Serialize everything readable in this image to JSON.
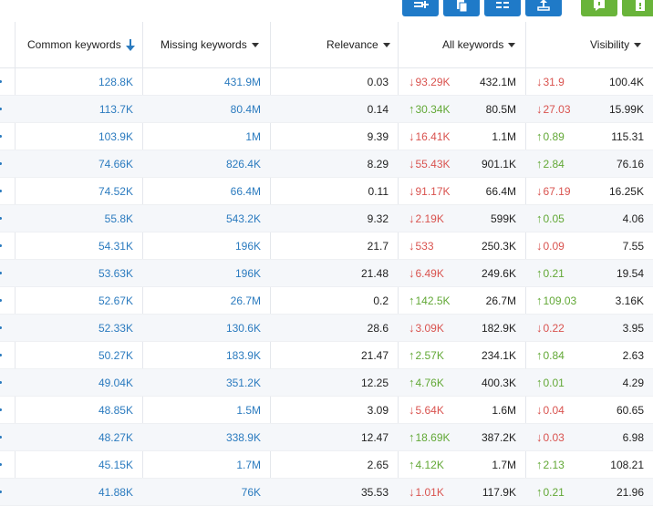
{
  "colors": {
    "accent": "#1f7ac8",
    "success": "#69b43a",
    "link": "#2b7bbf",
    "up": "#62a836",
    "down": "#d9534f"
  },
  "toolbar": {
    "buttons": [
      {
        "icon": "add-column-icon",
        "color": "blue"
      },
      {
        "icon": "copy-icon",
        "color": "blue"
      },
      {
        "icon": "columns-icon",
        "color": "blue"
      },
      {
        "icon": "export-icon",
        "color": "blue"
      },
      {
        "icon": "comment-icon",
        "color": "green"
      },
      {
        "icon": "help-icon",
        "color": "green"
      }
    ]
  },
  "headers": {
    "common": "Common keywords",
    "missing": "Missing keywords",
    "relevance": "Relevance",
    "all": "All keywords",
    "visibility": "Visibility"
  },
  "rows": [
    {
      "common": "128.8K",
      "missing": "431.9M",
      "relevance": "0.03",
      "all_dir": "down",
      "all_change": "93.29K",
      "all": "432.1M",
      "vis_dir": "down",
      "vis_change": "31.9",
      "vis": "100.4K"
    },
    {
      "common": "113.7K",
      "missing": "80.4M",
      "relevance": "0.14",
      "all_dir": "up",
      "all_change": "30.34K",
      "all": "80.5M",
      "vis_dir": "down",
      "vis_change": "27.03",
      "vis": "15.99K"
    },
    {
      "common": "103.9K",
      "missing": "1M",
      "relevance": "9.39",
      "all_dir": "down",
      "all_change": "16.41K",
      "all": "1.1M",
      "vis_dir": "up",
      "vis_change": "0.89",
      "vis": "115.31"
    },
    {
      "common": "74.66K",
      "missing": "826.4K",
      "relevance": "8.29",
      "all_dir": "down",
      "all_change": "55.43K",
      "all": "901.1K",
      "vis_dir": "up",
      "vis_change": "2.84",
      "vis": "76.16"
    },
    {
      "common": "74.52K",
      "missing": "66.4M",
      "relevance": "0.11",
      "all_dir": "down",
      "all_change": "91.17K",
      "all": "66.4M",
      "vis_dir": "down",
      "vis_change": "67.19",
      "vis": "16.25K"
    },
    {
      "common": "55.8K",
      "missing": "543.2K",
      "relevance": "9.32",
      "all_dir": "down",
      "all_change": "2.19K",
      "all": "599K",
      "vis_dir": "up",
      "vis_change": "0.05",
      "vis": "4.06"
    },
    {
      "common": "54.31K",
      "missing": "196K",
      "relevance": "21.7",
      "all_dir": "down",
      "all_change": "533",
      "all": "250.3K",
      "vis_dir": "down",
      "vis_change": "0.09",
      "vis": "7.55"
    },
    {
      "common": "53.63K",
      "missing": "196K",
      "relevance": "21.48",
      "all_dir": "down",
      "all_change": "6.49K",
      "all": "249.6K",
      "vis_dir": "up",
      "vis_change": "0.21",
      "vis": "19.54"
    },
    {
      "common": "52.67K",
      "missing": "26.7M",
      "relevance": "0.2",
      "all_dir": "up",
      "all_change": "142.5K",
      "all": "26.7M",
      "vis_dir": "up",
      "vis_change": "109.03",
      "vis": "3.16K"
    },
    {
      "common": "52.33K",
      "missing": "130.6K",
      "relevance": "28.6",
      "all_dir": "down",
      "all_change": "3.09K",
      "all": "182.9K",
      "vis_dir": "down",
      "vis_change": "0.22",
      "vis": "3.95"
    },
    {
      "common": "50.27K",
      "missing": "183.9K",
      "relevance": "21.47",
      "all_dir": "up",
      "all_change": "2.57K",
      "all": "234.1K",
      "vis_dir": "up",
      "vis_change": "0.84",
      "vis": "2.63"
    },
    {
      "common": "49.04K",
      "missing": "351.2K",
      "relevance": "12.25",
      "all_dir": "up",
      "all_change": "4.76K",
      "all": "400.3K",
      "vis_dir": "up",
      "vis_change": "0.01",
      "vis": "4.29"
    },
    {
      "common": "48.85K",
      "missing": "1.5M",
      "relevance": "3.09",
      "all_dir": "down",
      "all_change": "5.64K",
      "all": "1.6M",
      "vis_dir": "down",
      "vis_change": "0.04",
      "vis": "60.65"
    },
    {
      "common": "48.27K",
      "missing": "338.9K",
      "relevance": "12.47",
      "all_dir": "up",
      "all_change": "18.69K",
      "all": "387.2K",
      "vis_dir": "down",
      "vis_change": "0.03",
      "vis": "6.98"
    },
    {
      "common": "45.15K",
      "missing": "1.7M",
      "relevance": "2.65",
      "all_dir": "up",
      "all_change": "4.12K",
      "all": "1.7M",
      "vis_dir": "up",
      "vis_change": "2.13",
      "vis": "108.21"
    },
    {
      "common": "41.88K",
      "missing": "76K",
      "relevance": "35.53",
      "all_dir": "down",
      "all_change": "1.01K",
      "all": "117.9K",
      "vis_dir": "up",
      "vis_change": "0.21",
      "vis": "21.96"
    }
  ]
}
